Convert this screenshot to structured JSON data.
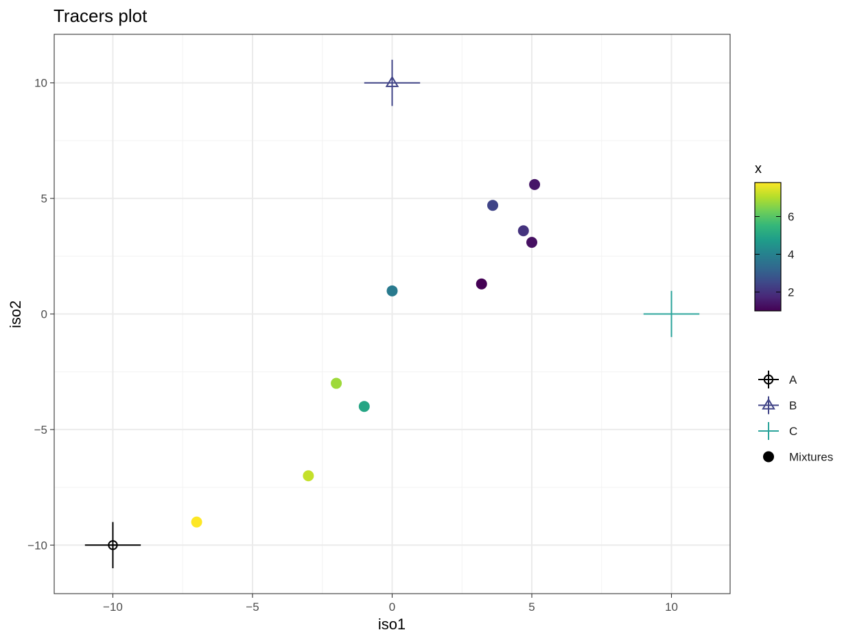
{
  "chart_data": {
    "type": "scatter",
    "title": "Tracers plot",
    "xlabel": "iso1",
    "ylabel": "iso2",
    "xlim": [
      -12.1,
      12.1
    ],
    "ylim": [
      -12.1,
      12.1
    ],
    "x_ticks": [
      -10,
      -5,
      0,
      5,
      10
    ],
    "x_tick_labels": [
      "−10",
      "−5",
      "0",
      "5",
      "10"
    ],
    "y_ticks": [
      -10,
      -5,
      0,
      5,
      10
    ],
    "y_tick_labels": [
      "−10",
      "−5",
      "0",
      "5",
      "10"
    ],
    "grid": true,
    "sources": [
      {
        "name": "A",
        "x": -10,
        "y": -10,
        "x_err": 1,
        "y_err": 1,
        "shape": "circle-open",
        "color": "#000000"
      },
      {
        "name": "B",
        "x": 0,
        "y": 10,
        "x_err": 1,
        "y_err": 1,
        "shape": "triangle-open",
        "color": "#414487"
      },
      {
        "name": "C",
        "x": 10,
        "y": 0,
        "x_err": 1,
        "y_err": 1,
        "shape": "plus",
        "color": "#2aa39a"
      }
    ],
    "mixtures_label": "Mixtures",
    "mixtures": [
      {
        "x": 5.1,
        "y": 5.6,
        "value": 1.4
      },
      {
        "x": 3.6,
        "y": 4.7,
        "value": 2.4
      },
      {
        "x": 4.7,
        "y": 3.6,
        "value": 2.0
      },
      {
        "x": 5.0,
        "y": 3.1,
        "value": 1.3
      },
      {
        "x": 3.2,
        "y": 1.3,
        "value": 1.0
      },
      {
        "x": 0.0,
        "y": 1.0,
        "value": 3.8
      },
      {
        "x": -2.0,
        "y": -3.0,
        "value": 6.8
      },
      {
        "x": -1.0,
        "y": -4.0,
        "value": 5.0
      },
      {
        "x": -3.0,
        "y": -7.0,
        "value": 7.2
      },
      {
        "x": -7.0,
        "y": -9.0,
        "value": 7.8
      }
    ],
    "colorbar": {
      "title": "x",
      "min": 1.0,
      "max": 7.8,
      "ticks": [
        2,
        4,
        6
      ],
      "tick_labels": [
        "2",
        "4",
        "6"
      ],
      "palette": [
        "#440154",
        "#482878",
        "#3e4989",
        "#31688e",
        "#26828e",
        "#1f9e89",
        "#35b779",
        "#6ece58",
        "#b5de2b",
        "#fde725"
      ]
    },
    "legend_position": "right"
  }
}
